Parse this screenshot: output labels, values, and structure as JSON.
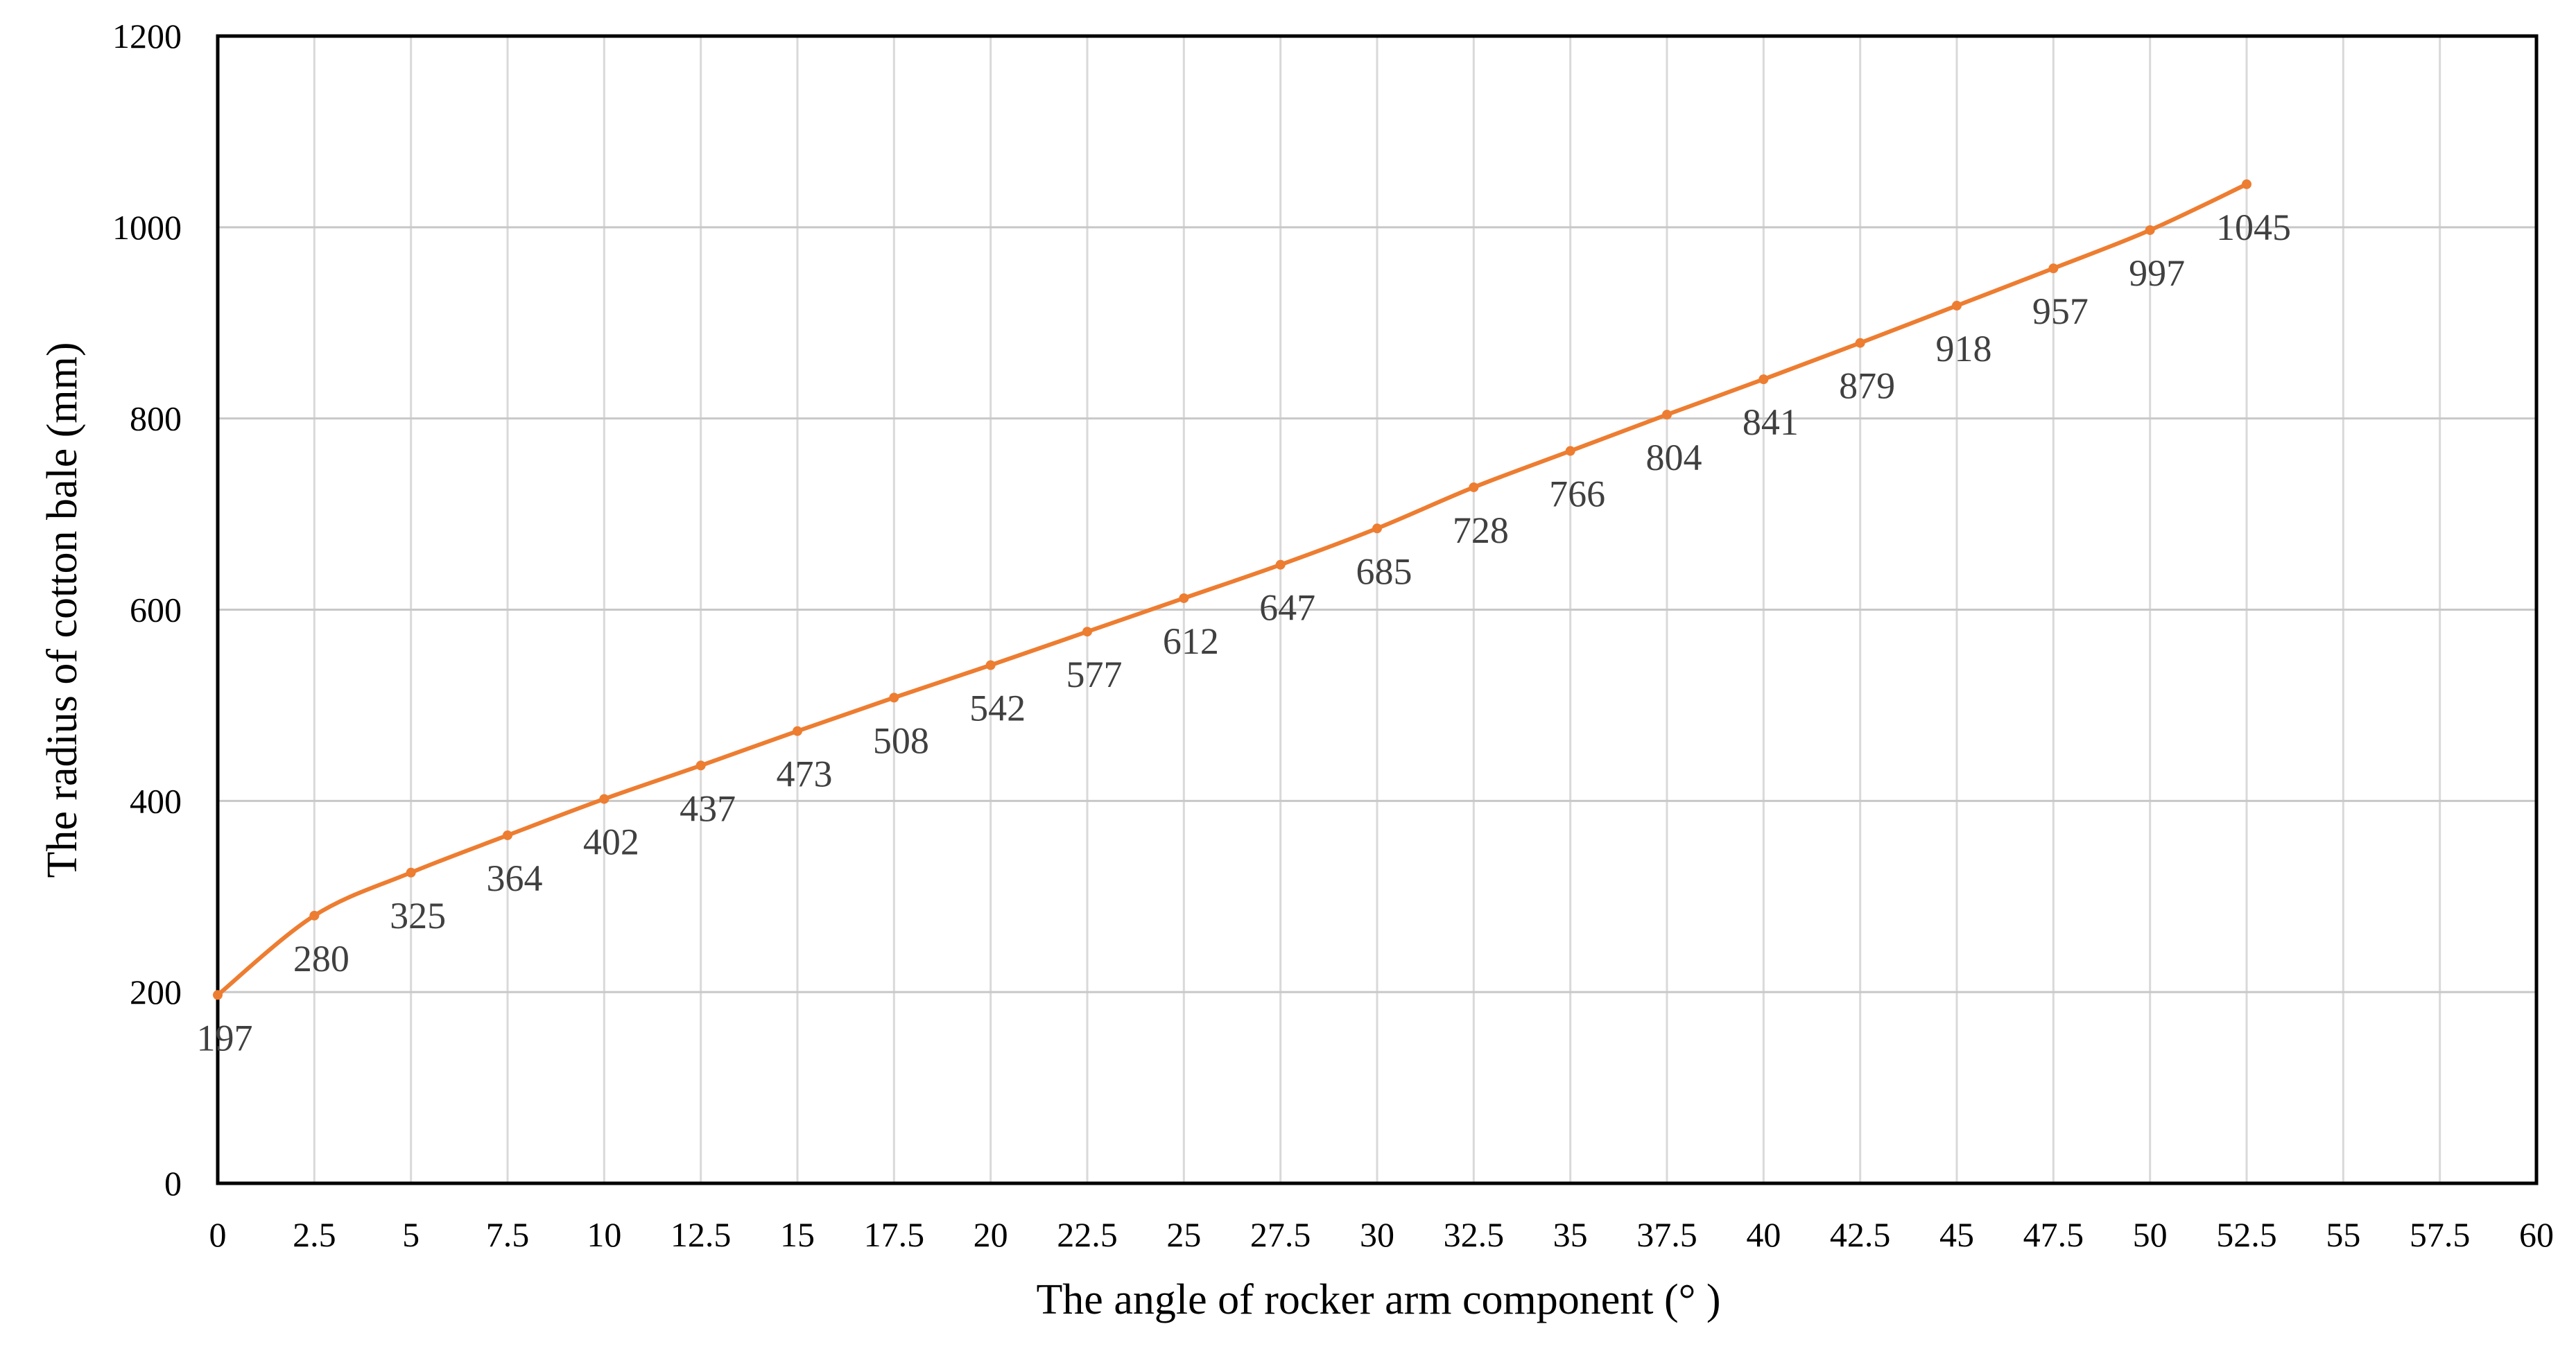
{
  "chart_data": {
    "type": "line",
    "title": "",
    "xlabel": "The angle of rocker arm component (°  )",
    "ylabel": "The radius of cotton bale (mm)",
    "xlim": [
      0,
      60
    ],
    "ylim": [
      0,
      1200
    ],
    "xticks": [
      "0",
      "2.5",
      "5",
      "7.5",
      "10",
      "12.5",
      "15",
      "17.5",
      "20",
      "22.5",
      "25",
      "27.5",
      "30",
      "32.5",
      "35",
      "37.5",
      "40",
      "42.5",
      "45",
      "47.5",
      "50",
      "52.5",
      "55",
      "57.5",
      "60"
    ],
    "yticks": [
      "0",
      "200",
      "400",
      "600",
      "800",
      "1000",
      "1200"
    ],
    "grid": true,
    "smooth": true,
    "markers": true,
    "data_labels": true,
    "color": "#ED7D31",
    "x": [
      0,
      2.5,
      5,
      7.5,
      10,
      12.5,
      15,
      17.5,
      20,
      22.5,
      25,
      27.5,
      30,
      32.5,
      35,
      37.5,
      40,
      42.5,
      45,
      47.5,
      50,
      52.5
    ],
    "values": [
      197,
      280,
      325,
      364,
      402,
      437,
      473,
      508,
      542,
      577,
      612,
      647,
      685,
      728,
      766,
      804,
      841,
      879,
      918,
      957,
      997,
      1045
    ],
    "labels": [
      "197",
      "280",
      "325",
      "364",
      "402",
      "437",
      "473",
      "508",
      "542",
      "577",
      "612",
      "647",
      "685",
      "728",
      "766",
      "804",
      "841",
      "879",
      "918",
      "957",
      "997",
      "1045"
    ]
  }
}
